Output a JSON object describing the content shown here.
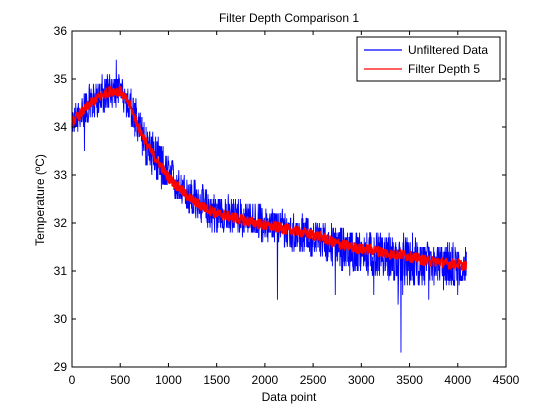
{
  "chart_data": {
    "type": "line",
    "title": "Filter Depth Comparison 1",
    "xlabel": "Data point",
    "ylabel": "Temperature (ºC)",
    "xlim": [
      0,
      4500
    ],
    "ylim": [
      29,
      36
    ],
    "xticks": [
      0,
      500,
      1000,
      1500,
      2000,
      2500,
      3000,
      3500,
      4000,
      4500
    ],
    "yticks": [
      29,
      30,
      31,
      32,
      33,
      34,
      35,
      36
    ],
    "grid": false,
    "legend_position": "top-right",
    "series": [
      {
        "name": "Unfiltered Data",
        "color": "#0000ff",
        "x": [
          0,
          100,
          200,
          300,
          400,
          500,
          600,
          700,
          800,
          900,
          1000,
          1100,
          1200,
          1300,
          1400,
          1500,
          1600,
          1700,
          1800,
          1900,
          2000,
          2100,
          2200,
          2300,
          2400,
          2500,
          2600,
          2700,
          2800,
          2900,
          3000,
          3100,
          3200,
          3300,
          3400,
          3500,
          3600,
          3700,
          3800,
          3900,
          4000,
          4090
        ],
        "center": [
          34.1,
          34.3,
          34.5,
          34.7,
          34.8,
          34.8,
          34.5,
          34.0,
          33.6,
          33.3,
          33.0,
          32.8,
          32.6,
          32.45,
          32.35,
          32.25,
          32.2,
          32.15,
          32.1,
          32.05,
          32.0,
          31.95,
          31.9,
          31.85,
          31.8,
          31.75,
          31.7,
          31.6,
          31.55,
          31.5,
          31.45,
          31.45,
          31.4,
          31.35,
          31.35,
          31.3,
          31.25,
          31.2,
          31.2,
          31.15,
          31.15,
          31.1
        ],
        "low": [
          33.8,
          34.0,
          34.1,
          34.3,
          34.4,
          34.4,
          34.1,
          33.5,
          33.1,
          32.8,
          32.6,
          32.4,
          32.2,
          32.0,
          31.9,
          31.8,
          31.8,
          31.8,
          31.7,
          31.7,
          31.6,
          31.6,
          31.5,
          31.4,
          31.4,
          31.3,
          31.3,
          31.1,
          31.0,
          30.9,
          30.9,
          30.9,
          30.9,
          30.8,
          30.6,
          30.7,
          30.7,
          30.7,
          30.7,
          30.6,
          30.7,
          30.8
        ],
        "high": [
          34.4,
          34.8,
          35.0,
          35.1,
          35.2,
          35.1,
          34.9,
          34.5,
          34.1,
          33.8,
          33.5,
          33.3,
          33.1,
          32.9,
          32.8,
          32.7,
          32.6,
          32.6,
          32.5,
          32.5,
          32.4,
          32.4,
          32.3,
          32.3,
          32.2,
          32.1,
          32.1,
          32.0,
          32.0,
          31.9,
          31.9,
          31.9,
          31.9,
          31.8,
          31.8,
          31.8,
          31.7,
          31.7,
          31.6,
          31.6,
          31.6,
          31.6
        ],
        "outliers": [
          [
            130,
            33.5
          ],
          [
            460,
            35.4
          ],
          [
            2130,
            30.4
          ],
          [
            2730,
            30.5
          ],
          [
            3130,
            30.5
          ],
          [
            3380,
            30.3
          ],
          [
            3410,
            29.3
          ],
          [
            3430,
            30.5
          ],
          [
            3700,
            30.4
          ],
          [
            4000,
            30.5
          ]
        ]
      },
      {
        "name": "Filter Depth 5",
        "color": "#ff0000",
        "x": [
          0,
          100,
          200,
          300,
          400,
          500,
          600,
          700,
          800,
          900,
          1000,
          1100,
          1200,
          1300,
          1400,
          1500,
          1600,
          1700,
          1800,
          1900,
          2000,
          2100,
          2200,
          2300,
          2400,
          2500,
          2600,
          2700,
          2800,
          2900,
          3000,
          3100,
          3200,
          3300,
          3400,
          3500,
          3600,
          3700,
          3800,
          3900,
          4000,
          4090
        ],
        "values": [
          34.1,
          34.3,
          34.5,
          34.65,
          34.75,
          34.75,
          34.45,
          33.95,
          33.55,
          33.25,
          32.95,
          32.75,
          32.55,
          32.4,
          32.3,
          32.2,
          32.15,
          32.1,
          32.05,
          32.0,
          31.95,
          31.92,
          31.88,
          31.84,
          31.8,
          31.75,
          31.7,
          31.6,
          31.55,
          31.5,
          31.45,
          31.45,
          31.4,
          31.35,
          31.35,
          31.3,
          31.25,
          31.2,
          31.2,
          31.15,
          31.15,
          31.1
        ]
      }
    ]
  }
}
